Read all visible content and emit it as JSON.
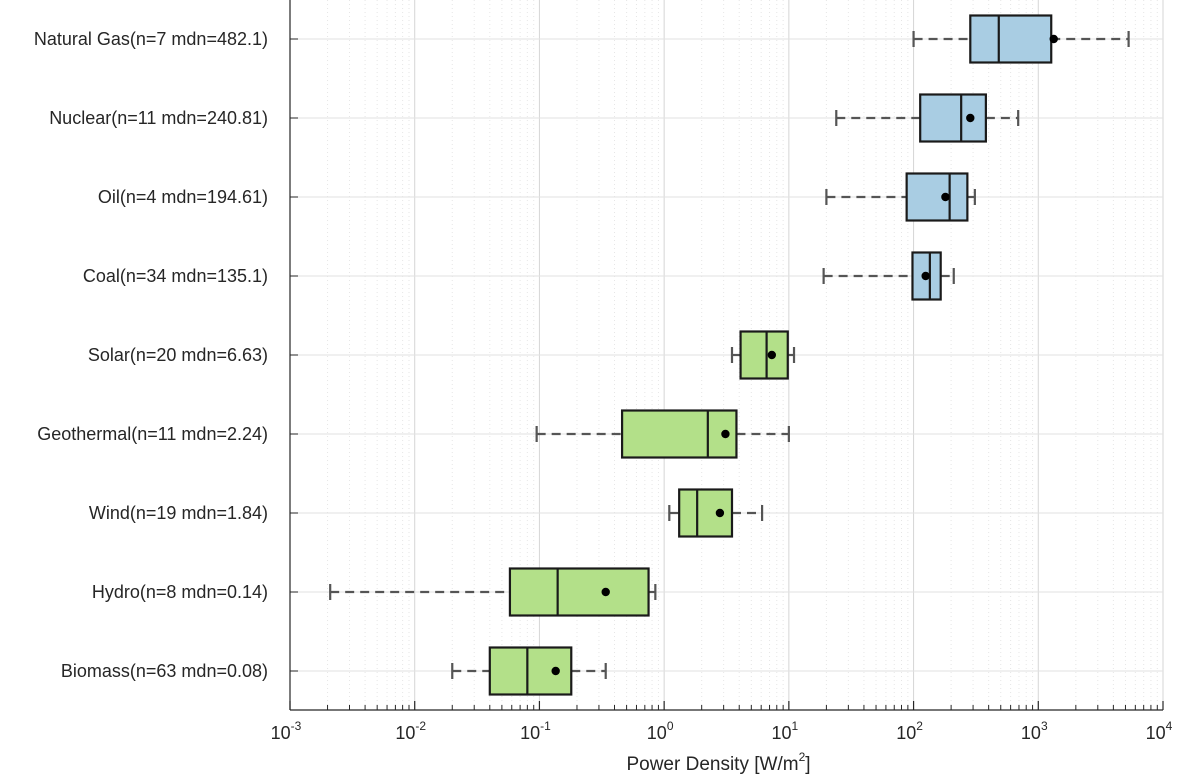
{
  "chart_data": {
    "type": "boxplot",
    "orientation": "horizontal",
    "xlabel": "Power Density [W/m²]",
    "xlabel_parts": {
      "base": "Power Density [W/m",
      "sup": "2",
      "tail": "]"
    },
    "xscale": "log",
    "xlim": [
      0.001,
      10000
    ],
    "x_ticks": [
      {
        "base": "10",
        "exp": "-3"
      },
      {
        "base": "10",
        "exp": "-2"
      },
      {
        "base": "10",
        "exp": "-1"
      },
      {
        "base": "10",
        "exp": "0"
      },
      {
        "base": "10",
        "exp": "1"
      },
      {
        "base": "10",
        "exp": "2"
      },
      {
        "base": "10",
        "exp": "3"
      },
      {
        "base": "10",
        "exp": "4"
      }
    ],
    "grid": true,
    "colors": {
      "fossil": "#a9cde3",
      "renewable": "#b3e089",
      "edge": "#1a1a1a",
      "whisker": "#555555",
      "mean": "#000000",
      "grid": "#d6d6d6"
    },
    "categories": [
      {
        "label": "Natural Gas(n=7 mdn=482.1)",
        "group": "fossil",
        "whisker_low": 100,
        "q1": 285,
        "median": 482.1,
        "q3": 1270,
        "whisker_high": 5300,
        "mean": 1330
      },
      {
        "label": "Nuclear(n=11 mdn=240.81)",
        "group": "fossil",
        "whisker_low": 24,
        "q1": 113,
        "median": 240.81,
        "q3": 380,
        "whisker_high": 690,
        "mean": 285
      },
      {
        "label": "Oil(n=4 mdn=194.61)",
        "group": "fossil",
        "whisker_low": 20,
        "q1": 88,
        "median": 194.61,
        "q3": 270,
        "whisker_high": 310,
        "mean": 180
      },
      {
        "label": "Coal(n=34 mdn=135.1)",
        "group": "fossil",
        "whisker_low": 19,
        "q1": 98,
        "median": 135.1,
        "q3": 165,
        "whisker_high": 210,
        "mean": 125
      },
      {
        "label": "Solar(n=20 mdn=6.63)",
        "group": "renewable",
        "whisker_low": 3.5,
        "q1": 4.1,
        "median": 6.63,
        "q3": 9.8,
        "whisker_high": 11,
        "mean": 7.3
      },
      {
        "label": "Geothermal(n=11 mdn=2.24)",
        "group": "renewable",
        "whisker_low": 0.095,
        "q1": 0.46,
        "median": 2.24,
        "q3": 3.8,
        "whisker_high": 10,
        "mean": 3.1
      },
      {
        "label": "Wind(n=19 mdn=1.84)",
        "group": "renewable",
        "whisker_low": 1.1,
        "q1": 1.32,
        "median": 1.84,
        "q3": 3.5,
        "whisker_high": 6.1,
        "mean": 2.8
      },
      {
        "label": "Hydro(n=8 mdn=0.14)",
        "group": "renewable",
        "whisker_low": 0.0021,
        "q1": 0.058,
        "median": 0.14,
        "q3": 0.75,
        "whisker_high": 0.85,
        "mean": 0.34
      },
      {
        "label": "Biomass(n=63 mdn=0.08)",
        "group": "renewable",
        "whisker_low": 0.02,
        "q1": 0.04,
        "median": 0.08,
        "q3": 0.18,
        "whisker_high": 0.34,
        "mean": 0.135
      }
    ]
  }
}
